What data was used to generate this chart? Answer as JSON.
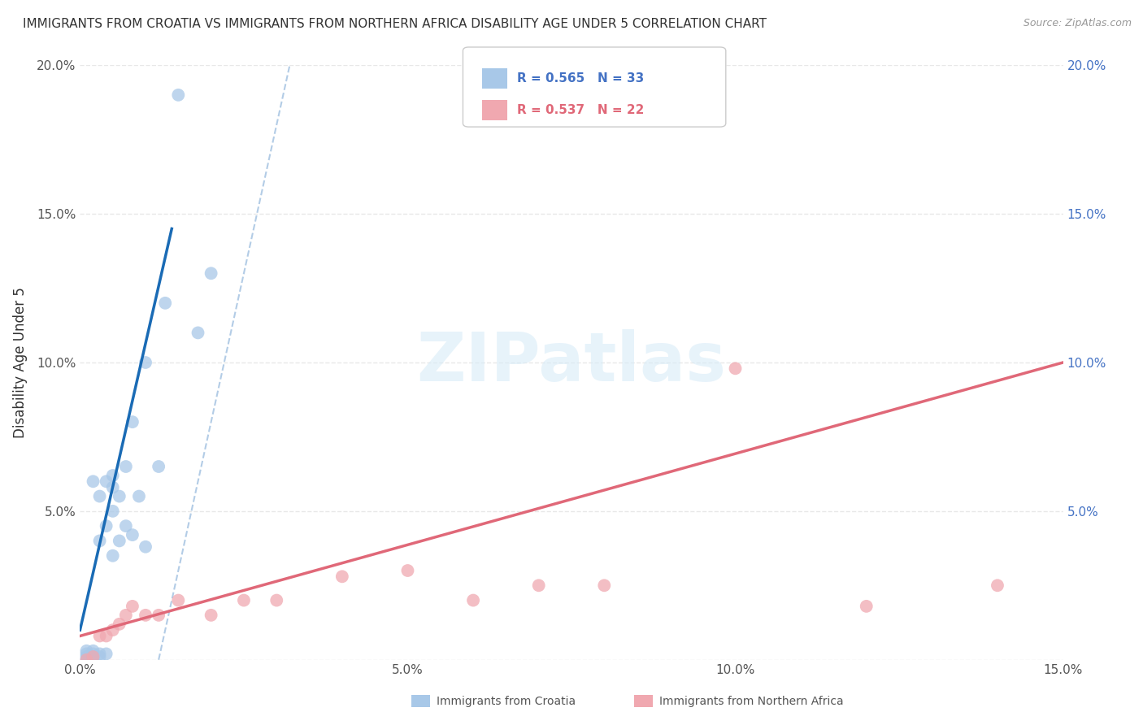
{
  "title": "IMMIGRANTS FROM CROATIA VS IMMIGRANTS FROM NORTHERN AFRICA DISABILITY AGE UNDER 5 CORRELATION CHART",
  "source": "Source: ZipAtlas.com",
  "ylabel": "Disability Age Under 5",
  "xlim": [
    0.0,
    0.15
  ],
  "ylim": [
    0.0,
    0.2
  ],
  "xticks": [
    0.0,
    0.05,
    0.1,
    0.15
  ],
  "yticks": [
    0.0,
    0.05,
    0.1,
    0.15,
    0.2
  ],
  "xticklabels": [
    "0.0%",
    "5.0%",
    "10.0%",
    "15.0%"
  ],
  "yticklabels": [
    "",
    "5.0%",
    "10.0%",
    "15.0%",
    "20.0%"
  ],
  "right_yticklabels": [
    "",
    "5.0%",
    "10.0%",
    "15.0%",
    "20.0%"
  ],
  "blue_R": 0.565,
  "blue_N": 33,
  "pink_R": 0.537,
  "pink_N": 22,
  "blue_color": "#a8c8e8",
  "blue_line_color": "#1a6bb5",
  "pink_color": "#f0a8b0",
  "pink_line_color": "#e06878",
  "watermark_text": "ZIPatlas",
  "legend_label_blue": "Immigrants from Croatia",
  "legend_label_pink": "Immigrants from Northern Africa",
  "blue_scatter_x": [
    0.001,
    0.001,
    0.001,
    0.001,
    0.002,
    0.002,
    0.002,
    0.002,
    0.003,
    0.003,
    0.003,
    0.003,
    0.004,
    0.004,
    0.004,
    0.005,
    0.005,
    0.005,
    0.005,
    0.006,
    0.006,
    0.007,
    0.007,
    0.008,
    0.008,
    0.009,
    0.01,
    0.01,
    0.012,
    0.013,
    0.015,
    0.018,
    0.02
  ],
  "blue_scatter_y": [
    0.0,
    0.001,
    0.002,
    0.003,
    0.001,
    0.002,
    0.003,
    0.06,
    0.001,
    0.002,
    0.04,
    0.055,
    0.002,
    0.045,
    0.06,
    0.035,
    0.05,
    0.058,
    0.062,
    0.04,
    0.055,
    0.045,
    0.065,
    0.042,
    0.08,
    0.055,
    0.038,
    0.1,
    0.065,
    0.12,
    0.19,
    0.11,
    0.13
  ],
  "pink_scatter_x": [
    0.001,
    0.002,
    0.003,
    0.004,
    0.005,
    0.006,
    0.007,
    0.008,
    0.01,
    0.012,
    0.015,
    0.02,
    0.025,
    0.03,
    0.04,
    0.05,
    0.06,
    0.07,
    0.08,
    0.1,
    0.12,
    0.14
  ],
  "pink_scatter_y": [
    0.0,
    0.001,
    0.008,
    0.008,
    0.01,
    0.012,
    0.015,
    0.018,
    0.015,
    0.015,
    0.02,
    0.015,
    0.02,
    0.02,
    0.028,
    0.03,
    0.02,
    0.025,
    0.025,
    0.098,
    0.018,
    0.025
  ],
  "blue_line_x0": 0.0,
  "blue_line_y0": 0.01,
  "blue_line_x1": 0.014,
  "blue_line_y1": 0.145,
  "pink_line_x0": 0.0,
  "pink_line_y0": 0.008,
  "pink_line_x1": 0.15,
  "pink_line_y1": 0.1,
  "diag_line_x0": 0.012,
  "diag_line_y0": 0.0,
  "diag_line_x1": 0.032,
  "diag_line_y1": 0.2,
  "background_color": "#ffffff",
  "grid_color": "#e8e8e8"
}
